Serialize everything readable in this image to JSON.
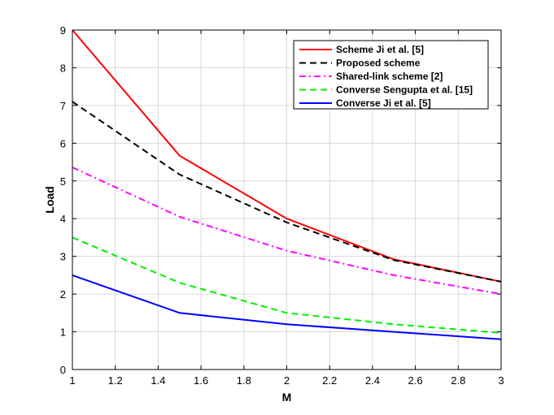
{
  "chart_data": {
    "type": "line",
    "title": "",
    "xlabel": "M",
    "ylabel": "Load",
    "xlim": [
      1,
      3
    ],
    "ylim": [
      0,
      9
    ],
    "xticks": [
      1,
      1.2,
      1.4,
      1.6,
      1.8,
      2,
      2.2,
      2.4,
      2.6,
      2.8,
      3
    ],
    "xtick_labels": [
      "1",
      "1.2",
      "1.4",
      "1.6",
      "1.8",
      "2",
      "2.2",
      "2.4",
      "2.6",
      "2.8",
      "3"
    ],
    "yticks": [
      0,
      1,
      2,
      3,
      4,
      5,
      6,
      7,
      8,
      9
    ],
    "ytick_labels": [
      "0",
      "1",
      "2",
      "3",
      "4",
      "5",
      "6",
      "7",
      "8",
      "9"
    ],
    "grid": true,
    "legend_position": "top-right",
    "series": [
      {
        "name": "Scheme Ji et al. [5]",
        "color": "#ff0000",
        "dash": "solid",
        "x": [
          1,
          1.5,
          2,
          2.5,
          3
        ],
        "y": [
          9,
          5.67,
          4.0,
          2.92,
          2.33
        ]
      },
      {
        "name": "Proposed scheme",
        "color": "#000000",
        "dash": "dashed",
        "x": [
          1,
          1.5,
          2,
          2.5,
          3
        ],
        "y": [
          7.1,
          5.17,
          3.9,
          2.9,
          2.33
        ]
      },
      {
        "name": "Shared-link scheme [2]",
        "color": "#ff00ff",
        "dash": "dashdot",
        "x": [
          1,
          1.5,
          2,
          2.5,
          3
        ],
        "y": [
          5.36,
          4.05,
          3.15,
          2.5,
          2.0
        ]
      },
      {
        "name": "Converse Sengupta et al. [15]",
        "color": "#00ee00",
        "dash": "dashed",
        "x": [
          1,
          1.5,
          2,
          2.5,
          3
        ],
        "y": [
          3.5,
          2.3,
          1.5,
          1.2,
          0.97
        ]
      },
      {
        "name": "Converse Ji et al. [5]",
        "color": "#0000ff",
        "dash": "solid",
        "x": [
          1,
          1.5,
          2,
          2.5,
          3
        ],
        "y": [
          2.5,
          1.5,
          1.2,
          1.0,
          0.8
        ]
      }
    ]
  }
}
